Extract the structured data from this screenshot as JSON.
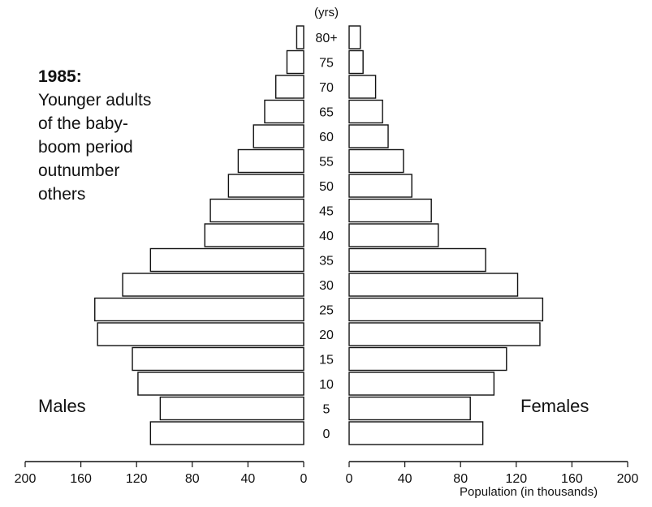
{
  "annotation": {
    "year": "1985:",
    "lines": [
      "Younger adults",
      "of the baby-",
      "boom period",
      "outnumber",
      "others"
    ]
  },
  "labels": {
    "males": "Males",
    "females": "Females",
    "age_unit": "(yrs)",
    "x_axis_caption": "Population (in thousands)"
  },
  "chart_data": {
    "type": "bar",
    "subtype": "population-pyramid",
    "orientation": "horizontal",
    "categories": [
      "80+",
      "75",
      "70",
      "65",
      "60",
      "55",
      "50",
      "45",
      "40",
      "35",
      "30",
      "25",
      "20",
      "15",
      "10",
      "5",
      "0"
    ],
    "series": [
      {
        "name": "Males",
        "values": [
          5,
          12,
          20,
          28,
          36,
          47,
          54,
          67,
          71,
          110,
          130,
          150,
          148,
          123,
          119,
          103,
          110
        ]
      },
      {
        "name": "Females",
        "values": [
          8,
          10,
          19,
          24,
          28,
          39,
          45,
          59,
          64,
          98,
          121,
          139,
          137,
          113,
          104,
          87,
          96
        ]
      }
    ],
    "xlim": [
      0,
      200
    ],
    "x_ticks": [
      0,
      40,
      80,
      120,
      160,
      200
    ],
    "xlabel": "Population (in thousands)",
    "ylabel": "(yrs)",
    "grid": false,
    "legend": "none"
  }
}
